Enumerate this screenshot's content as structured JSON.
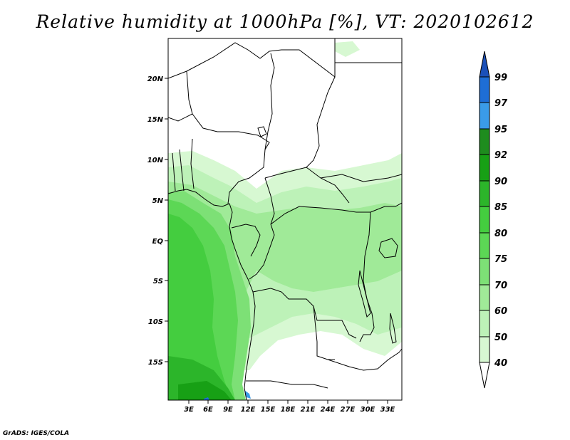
{
  "title": "Relative humidity at 1000hPa [%], VT: 2020102612",
  "credit": "GrADS: IGES/COLA",
  "lon_labels": [
    "3E",
    "6E",
    "9E",
    "12E",
    "15E",
    "18E",
    "21E",
    "24E",
    "27E",
    "30E",
    "33E"
  ],
  "lat_labels": [
    "20N",
    "15N",
    "10N",
    "5N",
    "EQ",
    "5S",
    "10S",
    "15S"
  ],
  "colorbar": {
    "levels": [
      "40",
      "50",
      "60",
      "70",
      "75",
      "80",
      "85",
      "90",
      "92",
      "95",
      "97",
      "99"
    ],
    "colors": [
      "#f0fff0",
      "#d7f8d2",
      "#bdf2b8",
      "#a0ea98",
      "#7de076",
      "#5cd755",
      "#44cd3f",
      "#2cb52a",
      "#17a015",
      "#1e8c1e",
      "#3a9be8",
      "#1e6ed6",
      "#1b50b8"
    ]
  },
  "colors": {
    "map_border": "#000000",
    "boundaries": "#000000"
  }
}
